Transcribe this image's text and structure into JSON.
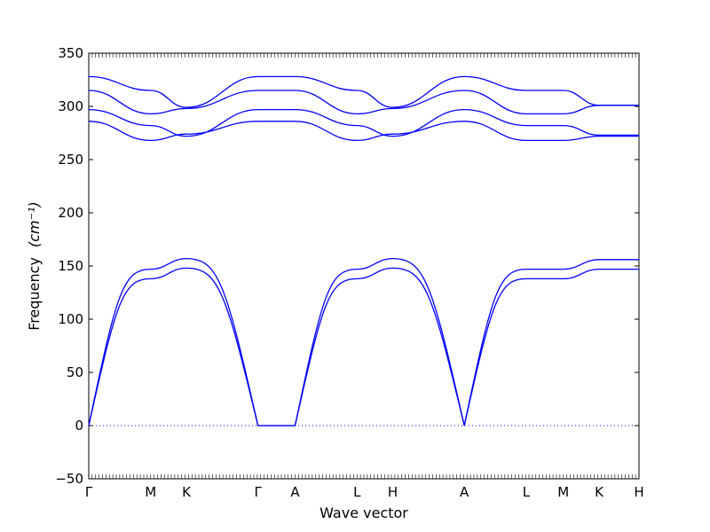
{
  "chart_data": {
    "type": "line",
    "xlabel": "Wave vector",
    "ylabel": "Frequency",
    "ylabel_unit": "(cm⁻¹)",
    "ylim": [
      -50,
      350
    ],
    "yticks": [
      -50,
      0,
      50,
      100,
      150,
      200,
      250,
      300,
      350
    ],
    "ytick_labels": [
      "−50",
      "0",
      "50",
      "100",
      "150",
      "200",
      "250",
      "300",
      "350"
    ],
    "x_path_points": [
      {
        "label": "Γ",
        "pos": 0.0
      },
      {
        "label": "M",
        "pos": 0.1125
      },
      {
        "label": "K",
        "pos": 0.1775
      },
      {
        "label": "Γ",
        "pos": 0.3075
      },
      {
        "label": "A",
        "pos": 0.375
      },
      {
        "label": "L",
        "pos": 0.4875
      },
      {
        "label": "H",
        "pos": 0.5525
      },
      {
        "label": "A",
        "pos": 0.6825
      },
      {
        "label": "L",
        "pos": 0.795
      },
      {
        "label": "M",
        "pos": 0.8625
      },
      {
        "label": "K",
        "pos": 0.9275
      },
      {
        "label": "H",
        "pos": 1.0
      }
    ],
    "line_color": "#0000ff",
    "zero_line": {
      "y": 0,
      "style": "dotted"
    },
    "series": [
      {
        "values": [
          0,
          138,
          148,
          0,
          0,
          138,
          148,
          0,
          138,
          138,
          147,
          147
        ]
      },
      {
        "values": [
          0,
          147,
          157,
          0,
          0,
          147,
          157,
          0,
          147,
          147,
          156,
          156
        ]
      },
      {
        "values": [
          286,
          268,
          274,
          286,
          286,
          268,
          274,
          286,
          268,
          268,
          272,
          272
        ]
      },
      {
        "values": [
          297,
          282,
          272,
          297,
          297,
          282,
          272,
          297,
          282,
          282,
          273,
          273
        ]
      },
      {
        "values": [
          315,
          293,
          298,
          315,
          315,
          293,
          298,
          315,
          293,
          293,
          301,
          301
        ]
      },
      {
        "values": [
          328,
          315,
          299,
          328,
          328,
          315,
          299,
          328,
          315,
          315,
          301,
          301
        ]
      }
    ]
  }
}
